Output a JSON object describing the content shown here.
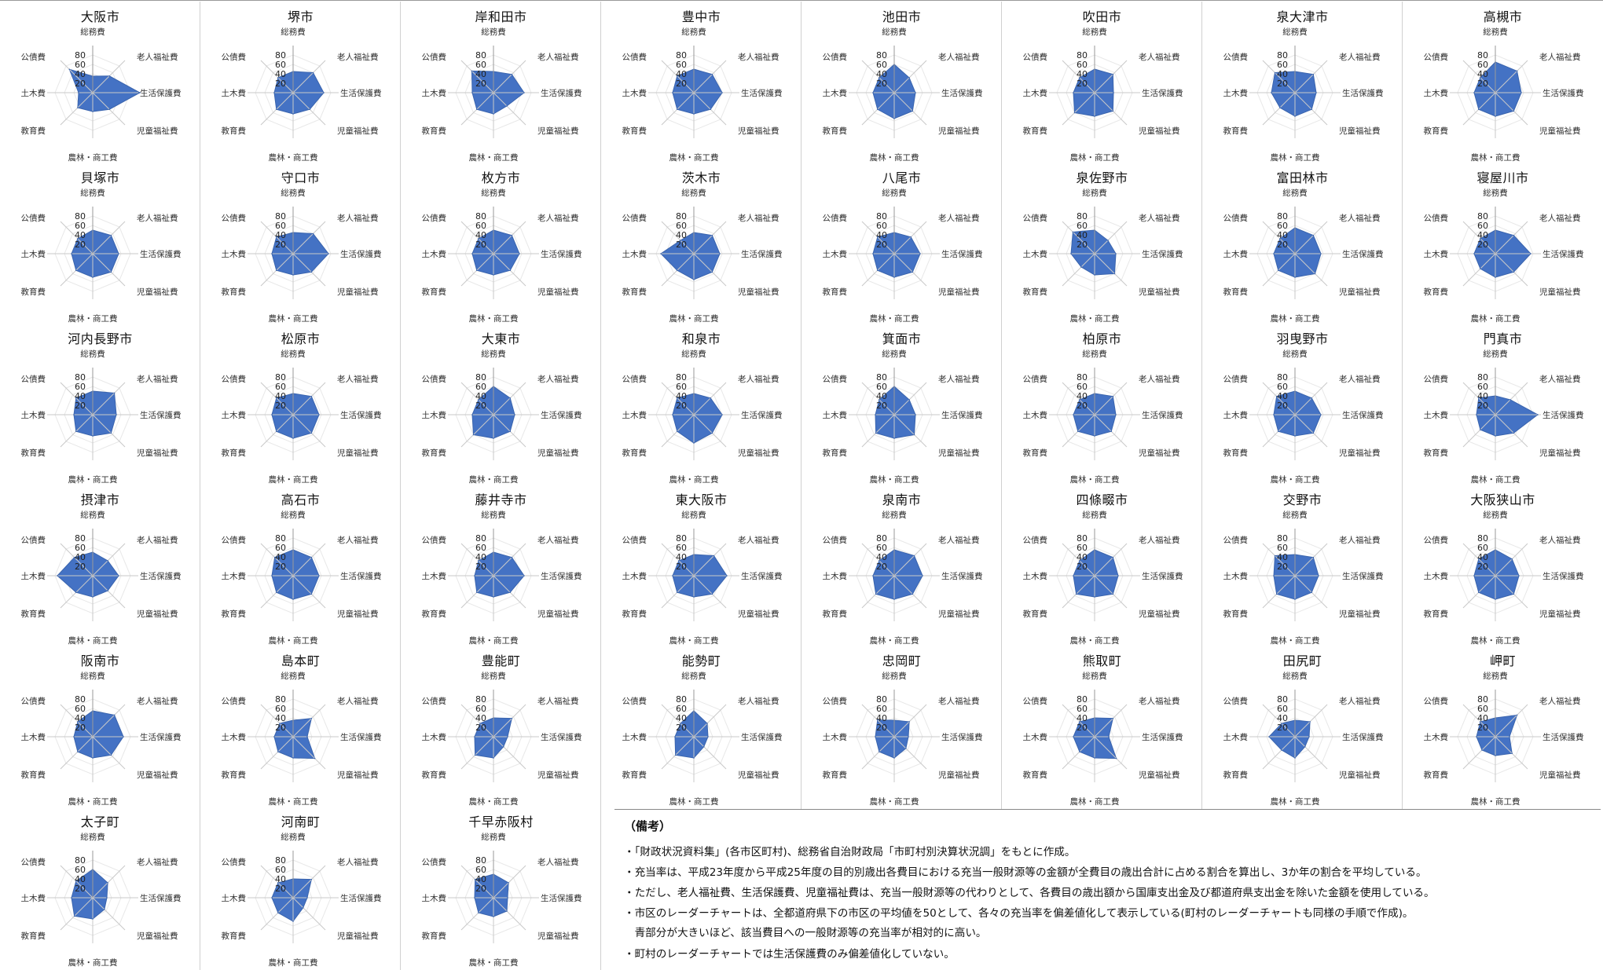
{
  "axes": [
    "総務費",
    "老人福祉費",
    "生活保護費",
    "児童福祉費",
    "農林・商工費",
    "教育費",
    "土木費",
    "公債費"
  ],
  "ticks": [
    "20",
    "40",
    "60",
    "80"
  ],
  "colors": {
    "fill": "#4472c4",
    "stroke": "#3a64ad",
    "grid": "#c9c9c9",
    "web": "#e8e8e8"
  },
  "chart_data": [
    {
      "type": "radar",
      "title": "大阪市",
      "values": [
        35,
        50,
        100,
        50,
        40,
        45,
        30,
        70
      ]
    },
    {
      "type": "radar",
      "title": "堺市",
      "values": [
        45,
        60,
        65,
        50,
        45,
        50,
        40,
        45
      ]
    },
    {
      "type": "radar",
      "title": "岸和田市",
      "values": [
        45,
        55,
        65,
        40,
        45,
        50,
        45,
        65
      ]
    },
    {
      "type": "radar",
      "title": "豊中市",
      "values": [
        50,
        55,
        60,
        50,
        45,
        50,
        45,
        50
      ]
    },
    {
      "type": "radar",
      "title": "池田市",
      "values": [
        60,
        45,
        45,
        55,
        55,
        50,
        45,
        45
      ]
    },
    {
      "type": "radar",
      "title": "吹田市",
      "values": [
        50,
        55,
        40,
        55,
        50,
        60,
        45,
        45
      ]
    },
    {
      "type": "radar",
      "title": "泉大津市",
      "values": [
        45,
        55,
        45,
        50,
        50,
        45,
        50,
        60
      ]
    },
    {
      "type": "radar",
      "title": "高槻市",
      "values": [
        65,
        65,
        55,
        55,
        50,
        50,
        45,
        45
      ]
    },
    {
      "type": "radar",
      "title": "貝塚市",
      "values": [
        50,
        55,
        55,
        55,
        50,
        50,
        45,
        45
      ]
    },
    {
      "type": "radar",
      "title": "守口市",
      "values": [
        45,
        60,
        75,
        55,
        45,
        50,
        45,
        50
      ]
    },
    {
      "type": "radar",
      "title": "枚方市",
      "values": [
        50,
        55,
        55,
        50,
        45,
        50,
        45,
        45
      ]
    },
    {
      "type": "radar",
      "title": "茨木市",
      "values": [
        45,
        55,
        55,
        55,
        55,
        50,
        70,
        40
      ]
    },
    {
      "type": "radar",
      "title": "八尾市",
      "values": [
        45,
        50,
        55,
        55,
        50,
        50,
        45,
        50
      ]
    },
    {
      "type": "radar",
      "title": "泉佐野市",
      "values": [
        50,
        40,
        45,
        60,
        45,
        40,
        50,
        65
      ]
    },
    {
      "type": "radar",
      "title": "富田林市",
      "values": [
        55,
        55,
        55,
        60,
        50,
        50,
        45,
        45
      ]
    },
    {
      "type": "radar",
      "title": "寝屋川市",
      "values": [
        50,
        55,
        75,
        55,
        50,
        45,
        45,
        45
      ]
    },
    {
      "type": "radar",
      "title": "河内長野市",
      "values": [
        50,
        65,
        50,
        55,
        45,
        50,
        40,
        50
      ]
    },
    {
      "type": "radar",
      "title": "松原市",
      "values": [
        45,
        55,
        55,
        55,
        50,
        50,
        45,
        50
      ]
    },
    {
      "type": "radar",
      "title": "大東市",
      "values": [
        60,
        50,
        45,
        50,
        50,
        60,
        45,
        45
      ]
    },
    {
      "type": "radar",
      "title": "和泉市",
      "values": [
        45,
        50,
        60,
        55,
        60,
        50,
        45,
        50
      ]
    },
    {
      "type": "radar",
      "title": "箕面市",
      "values": [
        60,
        45,
        45,
        60,
        50,
        55,
        40,
        45
      ]
    },
    {
      "type": "radar",
      "title": "柏原市",
      "values": [
        45,
        55,
        45,
        50,
        45,
        50,
        45,
        45
      ]
    },
    {
      "type": "radar",
      "title": "羽曳野市",
      "values": [
        50,
        50,
        55,
        55,
        45,
        50,
        45,
        55
      ]
    },
    {
      "type": "radar",
      "title": "門真市",
      "values": [
        40,
        45,
        90,
        55,
        45,
        45,
        40,
        50
      ]
    },
    {
      "type": "radar",
      "title": "摂津市",
      "values": [
        50,
        45,
        55,
        45,
        45,
        50,
        75,
        55
      ]
    },
    {
      "type": "radar",
      "title": "高石市",
      "values": [
        55,
        55,
        55,
        55,
        50,
        50,
        45,
        55
      ]
    },
    {
      "type": "radar",
      "title": "藤井寺市",
      "values": [
        50,
        55,
        65,
        50,
        45,
        50,
        40,
        45
      ]
    },
    {
      "type": "radar",
      "title": "東大阪市",
      "values": [
        45,
        60,
        70,
        55,
        45,
        50,
        45,
        45
      ]
    },
    {
      "type": "radar",
      "title": "泉南市",
      "values": [
        55,
        60,
        60,
        55,
        50,
        55,
        45,
        45
      ]
    },
    {
      "type": "radar",
      "title": "四條畷市",
      "values": [
        55,
        55,
        50,
        55,
        45,
        55,
        45,
        45
      ]
    },
    {
      "type": "radar",
      "title": "交野市",
      "values": [
        45,
        55,
        50,
        50,
        50,
        55,
        45,
        60
      ]
    },
    {
      "type": "radar",
      "title": "大阪狭山市",
      "values": [
        55,
        50,
        50,
        55,
        50,
        50,
        45,
        50
      ]
    },
    {
      "type": "radar",
      "title": "阪南市",
      "values": [
        55,
        65,
        65,
        55,
        45,
        45,
        40,
        45
      ]
    },
    {
      "type": "radar",
      "title": "島本町",
      "values": [
        35,
        55,
        30,
        65,
        45,
        45,
        40,
        40
      ]
    },
    {
      "type": "radar",
      "title": "豊能町",
      "values": [
        40,
        55,
        30,
        30,
        45,
        55,
        40,
        40
      ]
    },
    {
      "type": "radar",
      "title": "能勢町",
      "values": [
        55,
        40,
        30,
        30,
        45,
        55,
        40,
        40
      ]
    },
    {
      "type": "radar",
      "title": "忠岡町",
      "values": [
        35,
        45,
        30,
        35,
        45,
        45,
        40,
        50
      ]
    },
    {
      "type": "radar",
      "title": "熊取町",
      "values": [
        40,
        55,
        30,
        65,
        45,
        45,
        45,
        45
      ]
    },
    {
      "type": "radar",
      "title": "田尻町",
      "values": [
        35,
        45,
        30,
        30,
        45,
        40,
        55,
        40
      ]
    },
    {
      "type": "radar",
      "title": "岬町",
      "values": [
        40,
        65,
        30,
        50,
        40,
        40,
        40,
        45
      ]
    },
    {
      "type": "radar",
      "title": "太子町",
      "values": [
        60,
        45,
        30,
        35,
        45,
        55,
        45,
        50
      ]
    },
    {
      "type": "radar",
      "title": "河南町",
      "values": [
        40,
        55,
        30,
        30,
        50,
        45,
        45,
        45
      ]
    },
    {
      "type": "radar",
      "title": "千早赤阪村",
      "values": [
        50,
        45,
        30,
        40,
        40,
        45,
        40,
        55
      ]
    }
  ],
  "notes": {
    "title": "（備考）",
    "lines": [
      "・「財政状況資料集」(各市区町村)、総務省自治財政局「市町村別決算状況調」をもとに作成。",
      "・充当率は、平成23年度から平成25年度の目的別歳出各費目における充当一般財源等の金額が全費目の歳出合計に占める割合を算出し、3か年の割合を平均している。",
      "・ただし、老人福祉費、生活保護費、児童福祉費は、充当一般財源等の代わりとして、各費目の歳出額から国庫支出金及び都道府県支出金を除いた金額を使用している。",
      "・市区のレーダーチャートは、全都道府県下の市区の平均値を50として、各々の充当率を偏差値化して表示している(町村のレーダーチャートも同様の手順で作成)。",
      "　青部分が大きいほど、該当費目への一般財源等の充当率が相対的に高い。",
      "・町村のレーダーチャートでは生活保護費のみ偏差値化していない。"
    ]
  }
}
